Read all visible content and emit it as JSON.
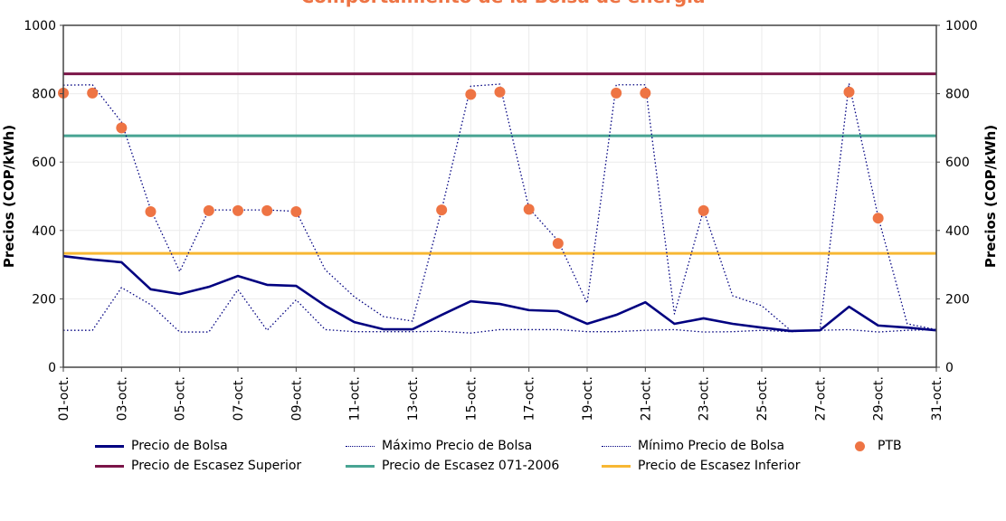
{
  "chart_data": {
    "type": "line",
    "title": "Comportamiento de la Bolsa de energía",
    "ylabel": "Precios (COP/kWh)",
    "ylabel_right": "Precios (COP/kWh)",
    "xlabel": "",
    "ylim": [
      0,
      1000
    ],
    "yticks": [
      "0",
      "200",
      "400",
      "600",
      "800",
      "1000"
    ],
    "grid": true,
    "legend_placement": "bottom",
    "x": [
      "01-oct.",
      "02-oct.",
      "03-oct.",
      "04-oct.",
      "05-oct.",
      "06-oct.",
      "07-oct.",
      "08-oct.",
      "09-oct.",
      "10-oct.",
      "11-oct.",
      "12-oct.",
      "13-oct.",
      "14-oct.",
      "15-oct.",
      "16-oct.",
      "17-oct.",
      "18-oct.",
      "19-oct.",
      "20-oct.",
      "21-oct.",
      "22-oct.",
      "23-oct.",
      "24-oct.",
      "25-oct.",
      "26-oct.",
      "27-oct.",
      "28-oct.",
      "29-oct.",
      "30-oct.",
      "31-oct."
    ],
    "xtick_labels": [
      "01-oct.",
      "03-oct.",
      "05-oct.",
      "07-oct.",
      "09-oct.",
      "11-oct.",
      "13-oct.",
      "15-oct.",
      "17-oct.",
      "19-oct.",
      "21-oct.",
      "23-oct.",
      "25-oct.",
      "27-oct.",
      "29-oct.",
      "31-oct."
    ],
    "series": [
      {
        "name": "Precio de Bolsa",
        "style": "solid",
        "color": "#000080",
        "values": [
          325,
          315,
          307,
          228,
          214,
          235,
          267,
          241,
          238,
          180,
          132,
          111,
          111,
          153,
          193,
          185,
          167,
          164,
          127,
          153,
          190,
          127,
          143,
          127,
          116,
          106,
          108,
          177,
          122,
          116,
          108
        ]
      },
      {
        "name": "Máximo Precio de Bolsa",
        "style": "dotted",
        "color": "#000080",
        "values": [
          825,
          826,
          717,
          462,
          280,
          460,
          460,
          460,
          456,
          285,
          206,
          148,
          135,
          460,
          822,
          828,
          465,
          370,
          188,
          826,
          826,
          156,
          460,
          209,
          180,
          107,
          108,
          830,
          440,
          127,
          110
        ]
      },
      {
        "name": "Mínimo Precio de Bolsa",
        "style": "dotted",
        "color": "#000080",
        "values": [
          108,
          108,
          233,
          183,
          103,
          103,
          227,
          108,
          197,
          110,
          104,
          104,
          104,
          105,
          100,
          110,
          110,
          110,
          104,
          104,
          108,
          110,
          103,
          104,
          108,
          104,
          108,
          110,
          103,
          108,
          110
        ]
      },
      {
        "name": "PTB",
        "style": "marker",
        "color": "#ee7444",
        "values": [
          802,
          802,
          700,
          455,
          null,
          458,
          458,
          458,
          455,
          null,
          null,
          null,
          null,
          460,
          798,
          805,
          462,
          362,
          null,
          802,
          802,
          null,
          458,
          null,
          null,
          null,
          null,
          805,
          436,
          null,
          null
        ]
      },
      {
        "name": "Precio de Escasez Superior",
        "style": "hline",
        "color": "#7b1548",
        "value": 858
      },
      {
        "name": "Precio de Escasez 071-2006",
        "style": "hline",
        "color": "#48a493",
        "value": 677
      },
      {
        "name": "Precio de Escasez Inferior",
        "style": "hline",
        "color": "#f7b733",
        "value": 333
      }
    ]
  }
}
